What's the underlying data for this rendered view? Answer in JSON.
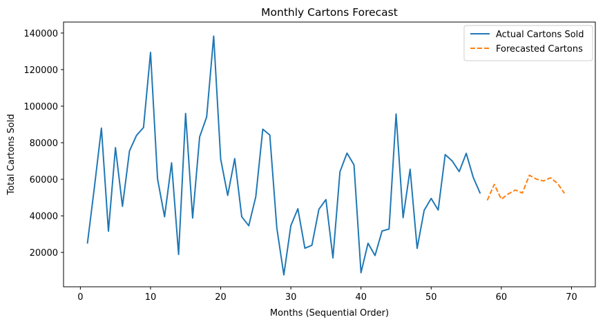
{
  "chart_data": {
    "type": "line",
    "title": "Monthly Cartons Forecast",
    "xlabel": "Months (Sequential Order)",
    "ylabel": "Total Cartons Sold",
    "xlim": [
      -2.4,
      73.4
    ],
    "ylim": [
      1200,
      146000
    ],
    "xticks": [
      0,
      10,
      20,
      30,
      40,
      50,
      60,
      70
    ],
    "xtick_labels": [
      "0",
      "10",
      "20",
      "30",
      "40",
      "50",
      "60",
      "70"
    ],
    "yticks": [
      20000,
      40000,
      60000,
      80000,
      100000,
      120000,
      140000
    ],
    "ytick_labels": [
      "20000",
      "40000",
      "60000",
      "80000",
      "100000",
      "120000",
      "140000"
    ],
    "grid": false,
    "legend_position": "top-right",
    "series": [
      {
        "name": "Actual Cartons Sold",
        "color": "#1f77b4",
        "style": "solid",
        "x": [
          1,
          2,
          3,
          4,
          5,
          6,
          7,
          8,
          9,
          10,
          11,
          12,
          13,
          14,
          15,
          16,
          17,
          18,
          19,
          20,
          21,
          22,
          23,
          24,
          25,
          26,
          27,
          28,
          29,
          30,
          31,
          32,
          33,
          34,
          35,
          36,
          37,
          38,
          39,
          40,
          41,
          42,
          43,
          44,
          45,
          46,
          47,
          48,
          49,
          50,
          51,
          52,
          53,
          54,
          55,
          56,
          57
        ],
        "y": [
          24800,
          55700,
          88000,
          31600,
          77300,
          45200,
          75500,
          84000,
          88300,
          129400,
          60200,
          39500,
          69000,
          18900,
          96000,
          38800,
          83200,
          94100,
          138300,
          71000,
          51200,
          71300,
          39500,
          34600,
          50400,
          87400,
          84200,
          33400,
          7700,
          34600,
          43900,
          22300,
          23900,
          43600,
          48900,
          17000,
          64100,
          74300,
          67900,
          8900,
          25000,
          18300,
          31700,
          32800,
          95700,
          39000,
          65500,
          22200,
          43000,
          49500,
          43200,
          73500,
          70000,
          64200,
          74200,
          61000,
          52200
        ]
      },
      {
        "name": "Forecasted Cartons",
        "color": "#ff7f0e",
        "style": "dashed",
        "x": [
          58,
          59,
          60,
          61,
          62,
          63,
          64,
          65,
          66,
          67,
          68,
          69
        ],
        "y": [
          48500,
          57200,
          49100,
          52000,
          54100,
          52500,
          62200,
          60100,
          59100,
          60800,
          57800,
          52300
        ]
      }
    ]
  }
}
